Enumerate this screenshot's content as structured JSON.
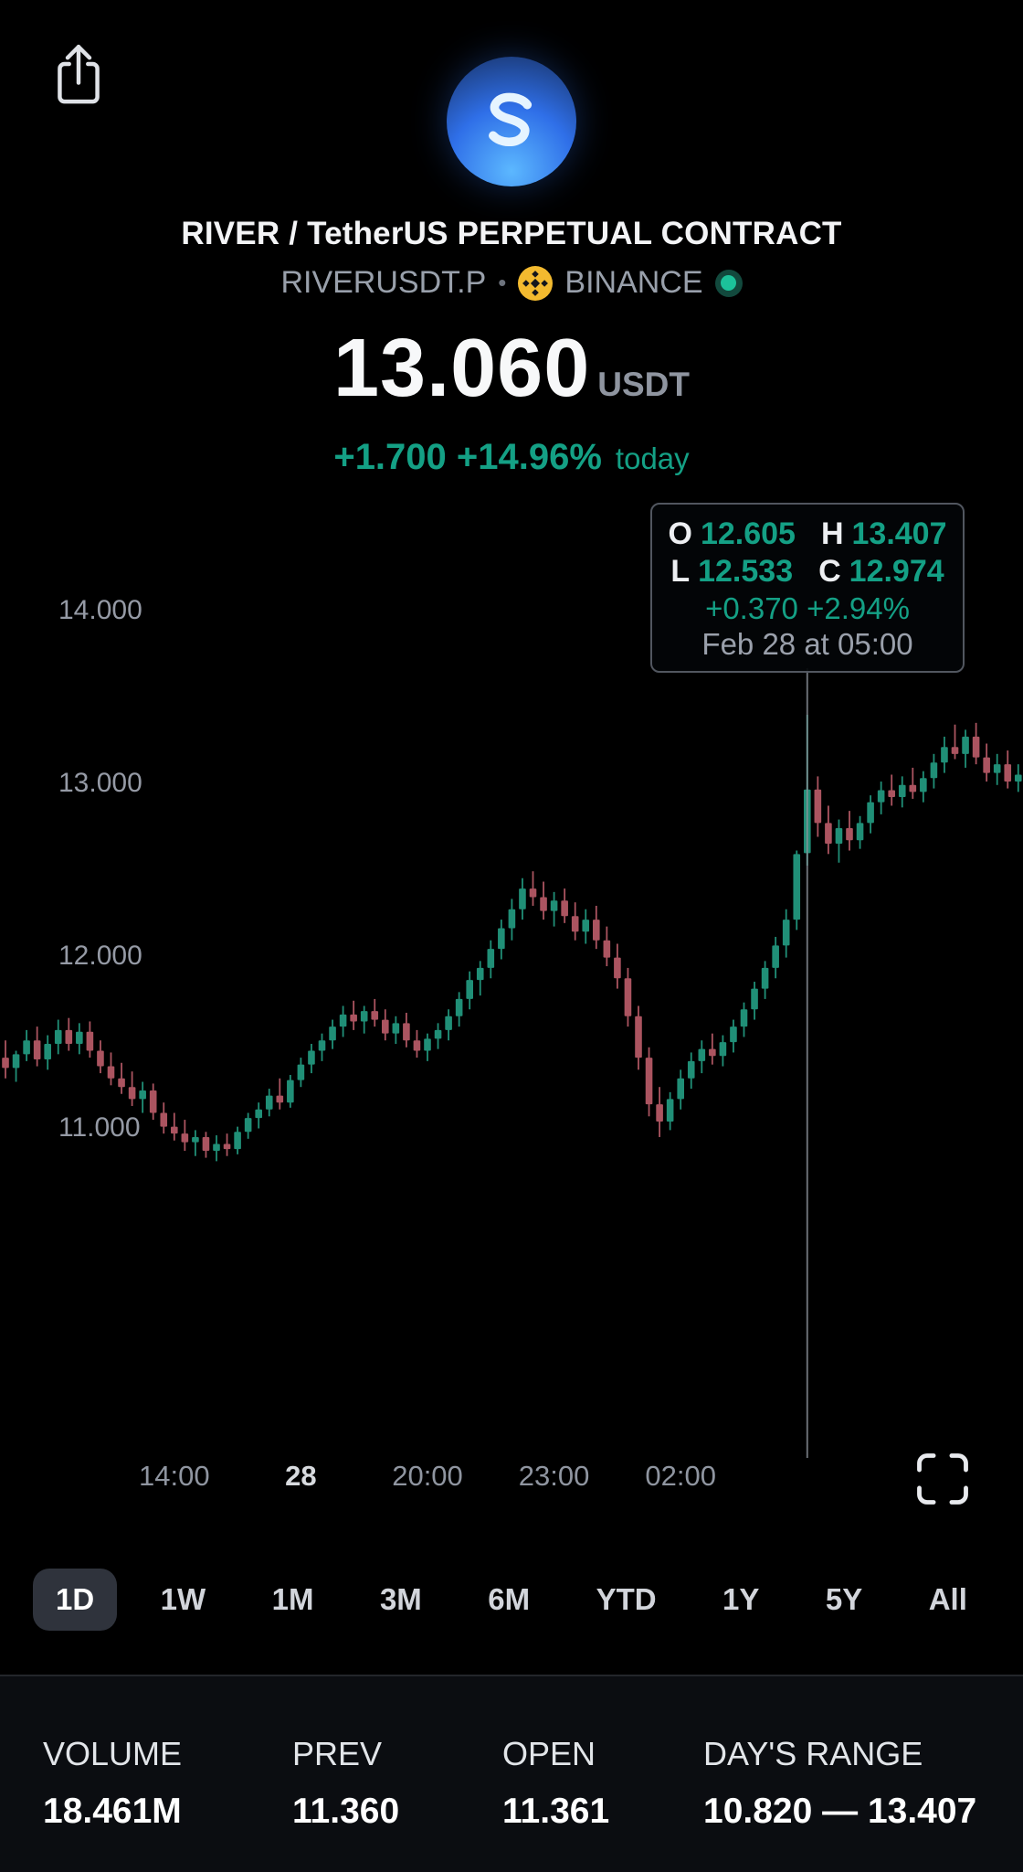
{
  "colors": {
    "bg": "#000000",
    "panel_bg": "#0b0d11",
    "text": "#f3f4f6",
    "muted": "#99a0ab",
    "green": "#14a085",
    "candle_up": "#208f77",
    "candle_down": "#ab5460",
    "binance_yellow": "#f3ba2f",
    "selected_range_bg": "#2f333c",
    "tooltip_border": "#51565f",
    "crosshair": "#8e939c",
    "divider": "#23262b"
  },
  "header": {
    "title": "RIVER / TetherUS PERPETUAL CONTRACT",
    "symbol": "RIVERUSDT.P",
    "separator": "•",
    "exchange": "BINANCE",
    "price": "13.060",
    "currency": "USDT",
    "change": "+1.700 +14.96%",
    "change_period": "today"
  },
  "tooltip": {
    "o_label": "O",
    "o": "12.605",
    "h_label": "H",
    "h": "13.407",
    "l_label": "L",
    "l": "12.533",
    "c_label": "C",
    "c": "12.974",
    "change": "+0.370 +2.94%",
    "date": "Feb 28 at 05:00"
  },
  "chart_data": {
    "type": "candlestick",
    "title": "RIVERUSDT.P intraday price",
    "ylim": [
      10.6,
      14.3
    ],
    "grid": false,
    "y_ticks": [
      {
        "price": 14.0,
        "label": "14.000"
      },
      {
        "price": 13.0,
        "label": "13.000"
      },
      {
        "price": 12.0,
        "label": "12.000"
      },
      {
        "price": 11.0,
        "label": "11.000"
      }
    ],
    "x_ticks": [
      {
        "index": 16,
        "label": "14:00",
        "bold": false
      },
      {
        "index": 28,
        "label": "28",
        "bold": true
      },
      {
        "index": 40,
        "label": "20:00",
        "bold": false
      },
      {
        "index": 52,
        "label": "23:00",
        "bold": false
      },
      {
        "index": 64,
        "label": "02:00",
        "bold": false
      }
    ],
    "crosshair": {
      "index": 76
    },
    "candles": [
      [
        11.42,
        11.52,
        11.3,
        11.36
      ],
      [
        11.36,
        11.46,
        11.28,
        11.44
      ],
      [
        11.44,
        11.58,
        11.4,
        11.52
      ],
      [
        11.52,
        11.6,
        11.37,
        11.41
      ],
      [
        11.41,
        11.55,
        11.35,
        11.5
      ],
      [
        11.5,
        11.64,
        11.44,
        11.58
      ],
      [
        11.58,
        11.65,
        11.46,
        11.5
      ],
      [
        11.5,
        11.62,
        11.44,
        11.57
      ],
      [
        11.57,
        11.63,
        11.42,
        11.46
      ],
      [
        11.46,
        11.52,
        11.33,
        11.37
      ],
      [
        11.37,
        11.45,
        11.26,
        11.3
      ],
      [
        11.3,
        11.39,
        11.21,
        11.25
      ],
      [
        11.25,
        11.34,
        11.14,
        11.18
      ],
      [
        11.18,
        11.28,
        11.1,
        11.23
      ],
      [
        11.23,
        11.27,
        11.06,
        11.1
      ],
      [
        11.1,
        11.16,
        10.98,
        11.02
      ],
      [
        11.02,
        11.1,
        10.94,
        10.98
      ],
      [
        10.98,
        11.06,
        10.88,
        10.93
      ],
      [
        10.93,
        11.0,
        10.85,
        10.96
      ],
      [
        10.96,
        10.99,
        10.84,
        10.88
      ],
      [
        10.88,
        10.97,
        10.82,
        10.92
      ],
      [
        10.92,
        10.98,
        10.85,
        10.89
      ],
      [
        10.89,
        11.02,
        10.86,
        10.99
      ],
      [
        10.99,
        11.1,
        10.95,
        11.07
      ],
      [
        11.07,
        11.16,
        11.01,
        11.12
      ],
      [
        11.12,
        11.24,
        11.08,
        11.2
      ],
      [
        11.2,
        11.3,
        11.12,
        11.16
      ],
      [
        11.16,
        11.32,
        11.13,
        11.29
      ],
      [
        11.29,
        11.42,
        11.25,
        11.38
      ],
      [
        11.38,
        11.5,
        11.33,
        11.46
      ],
      [
        11.46,
        11.56,
        11.4,
        11.52
      ],
      [
        11.52,
        11.64,
        11.47,
        11.6
      ],
      [
        11.6,
        11.72,
        11.54,
        11.67
      ],
      [
        11.67,
        11.75,
        11.58,
        11.63
      ],
      [
        11.63,
        11.72,
        11.56,
        11.69
      ],
      [
        11.69,
        11.76,
        11.6,
        11.64
      ],
      [
        11.64,
        11.7,
        11.52,
        11.56
      ],
      [
        11.56,
        11.66,
        11.5,
        11.62
      ],
      [
        11.62,
        11.68,
        11.48,
        11.52
      ],
      [
        11.52,
        11.58,
        11.42,
        11.46
      ],
      [
        11.46,
        11.56,
        11.4,
        11.53
      ],
      [
        11.53,
        11.62,
        11.47,
        11.58
      ],
      [
        11.58,
        11.7,
        11.52,
        11.66
      ],
      [
        11.66,
        11.8,
        11.6,
        11.76
      ],
      [
        11.76,
        11.92,
        11.7,
        11.87
      ],
      [
        11.87,
        11.98,
        11.78,
        11.94
      ],
      [
        11.94,
        12.1,
        11.88,
        12.05
      ],
      [
        12.05,
        12.22,
        11.99,
        12.17
      ],
      [
        12.17,
        12.34,
        12.1,
        12.28
      ],
      [
        12.28,
        12.46,
        12.22,
        12.4
      ],
      [
        12.4,
        12.5,
        12.3,
        12.35
      ],
      [
        12.35,
        12.44,
        12.22,
        12.27
      ],
      [
        12.27,
        12.38,
        12.18,
        12.33
      ],
      [
        12.33,
        12.4,
        12.2,
        12.24
      ],
      [
        12.24,
        12.32,
        12.1,
        12.15
      ],
      [
        12.15,
        12.28,
        12.08,
        12.22
      ],
      [
        12.22,
        12.3,
        12.05,
        12.1
      ],
      [
        12.1,
        12.18,
        11.95,
        12.0
      ],
      [
        12.0,
        12.08,
        11.82,
        11.88
      ],
      [
        11.88,
        11.94,
        11.6,
        11.66
      ],
      [
        11.66,
        11.72,
        11.35,
        11.42
      ],
      [
        11.42,
        11.48,
        11.08,
        11.15
      ],
      [
        11.15,
        11.25,
        10.96,
        11.05
      ],
      [
        11.05,
        11.22,
        11.0,
        11.18
      ],
      [
        11.18,
        11.35,
        11.12,
        11.3
      ],
      [
        11.3,
        11.45,
        11.24,
        11.4
      ],
      [
        11.4,
        11.52,
        11.33,
        11.47
      ],
      [
        11.47,
        11.56,
        11.38,
        11.43
      ],
      [
        11.43,
        11.55,
        11.37,
        11.51
      ],
      [
        11.51,
        11.64,
        11.45,
        11.6
      ],
      [
        11.6,
        11.74,
        11.54,
        11.7
      ],
      [
        11.7,
        11.86,
        11.64,
        11.82
      ],
      [
        11.82,
        11.98,
        11.76,
        11.94
      ],
      [
        11.94,
        12.12,
        11.88,
        12.07
      ],
      [
        12.07,
        12.28,
        12.0,
        12.22
      ],
      [
        12.22,
        12.62,
        12.16,
        12.6
      ],
      [
        12.605,
        13.407,
        12.533,
        12.974
      ],
      [
        12.974,
        13.05,
        12.7,
        12.78
      ],
      [
        12.78,
        12.88,
        12.6,
        12.66
      ],
      [
        12.66,
        12.8,
        12.55,
        12.75
      ],
      [
        12.75,
        12.85,
        12.62,
        12.68
      ],
      [
        12.68,
        12.82,
        12.63,
        12.78
      ],
      [
        12.78,
        12.94,
        12.72,
        12.9
      ],
      [
        12.9,
        13.02,
        12.83,
        12.97
      ],
      [
        12.97,
        13.06,
        12.88,
        12.93
      ],
      [
        12.93,
        13.05,
        12.87,
        13.0
      ],
      [
        13.0,
        13.1,
        12.92,
        12.96
      ],
      [
        12.96,
        13.08,
        12.9,
        13.04
      ],
      [
        13.04,
        13.18,
        12.98,
        13.13
      ],
      [
        13.13,
        13.28,
        13.07,
        13.22
      ],
      [
        13.22,
        13.35,
        13.15,
        13.18
      ],
      [
        13.18,
        13.32,
        13.1,
        13.28
      ],
      [
        13.28,
        13.36,
        13.12,
        13.16
      ],
      [
        13.16,
        13.24,
        13.02,
        13.07
      ],
      [
        13.07,
        13.18,
        13.0,
        13.12
      ],
      [
        13.12,
        13.2,
        12.98,
        13.02
      ],
      [
        13.02,
        13.12,
        12.96,
        13.06
      ]
    ]
  },
  "ranges": {
    "items": [
      "1D",
      "1W",
      "1M",
      "3M",
      "6M",
      "YTD",
      "1Y",
      "5Y",
      "All"
    ],
    "selected": "1D"
  },
  "stats": [
    {
      "label": "VOLUME",
      "value": "18.461M"
    },
    {
      "label": "PREV",
      "value": "11.360"
    },
    {
      "label": "OPEN",
      "value": "11.361"
    },
    {
      "label": "DAY'S RANGE",
      "value": "10.820 — 13.407"
    }
  ]
}
